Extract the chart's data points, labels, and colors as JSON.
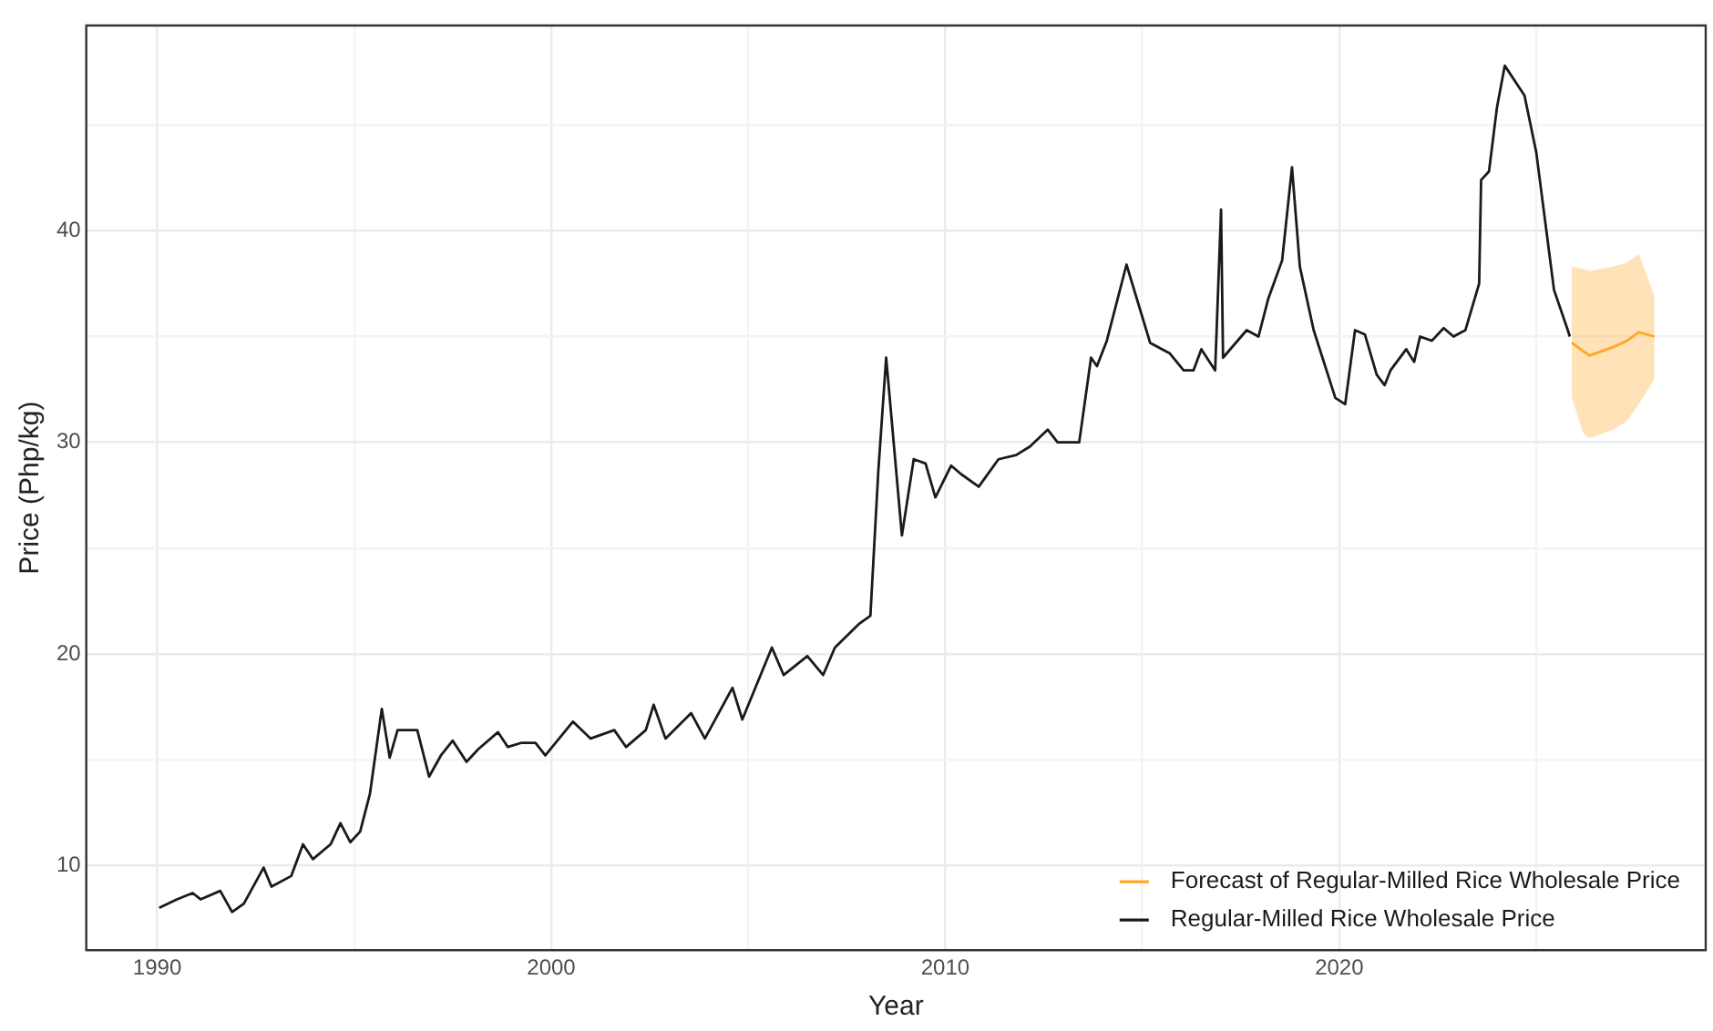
{
  "chart_data": {
    "type": "line",
    "xlabel": "Year",
    "ylabel": "Price (Php/kg)",
    "xlim": [
      1988.2,
      2029.3
    ],
    "xticks": [
      1990,
      {
        "value": 1995,
        "label": null
      },
      2000,
      {
        "value": 2005,
        "label": null
      },
      2010,
      {
        "value": 2015,
        "label": null
      },
      2020,
      {
        "value": 2025,
        "label": null
      }
    ],
    "ylim": [
      6,
      49.7
    ],
    "yticks": [
      10,
      {
        "value": 15,
        "label": null
      },
      20,
      {
        "value": 25,
        "label": null
      },
      30,
      {
        "value": 35,
        "label": null
      },
      40,
      {
        "value": 45,
        "label": null
      }
    ],
    "grid": true,
    "legend": "bottom right",
    "marker": "none",
    "line_style": "solid",
    "series": [
      {
        "name": "Forecast of Regular-Milled Rice Wholesale Price",
        "color": "#ffa726",
        "x": [
          2025.9,
          2026.2,
          2026.35,
          2026.95,
          2027.3,
          2027.6,
          2028.0
        ],
        "values": [
          34.7,
          34.3,
          34.1,
          34.5,
          34.8,
          35.2,
          35.0
        ],
        "lower": [
          32.1,
          30.4,
          30.2,
          30.6,
          31.0,
          31.8,
          33.0
        ],
        "upper": [
          38.3,
          38.2,
          38.1,
          38.3,
          38.5,
          38.9,
          36.9
        ]
      },
      {
        "name": "Regular-Milled Rice Wholesale Price",
        "color": "#1a1a1a",
        "x": [
          1990.05,
          1990.5,
          1990.9,
          1991.1,
          1991.6,
          1991.9,
          1992.2,
          1992.7,
          1992.9,
          1993.4,
          1993.7,
          1993.95,
          1994.4,
          1994.65,
          1994.9,
          1995.15,
          1995.4,
          1995.7,
          1995.9,
          1996.1,
          1996.6,
          1996.9,
          1997.2,
          1997.5,
          1997.85,
          1998.15,
          1998.65,
          1998.9,
          1999.25,
          1999.6,
          1999.85,
          2000.55,
          2001.0,
          2001.6,
          2001.9,
          2002.4,
          2002.6,
          2002.9,
          2003.55,
          2003.9,
          2004.6,
          2004.85,
          2005.6,
          2005.9,
          2006.5,
          2006.9,
          2007.2,
          2007.8,
          2008.1,
          2008.3,
          2008.5,
          2008.9,
          2009.2,
          2009.5,
          2009.75,
          2010.15,
          2010.4,
          2010.85,
          2011.35,
          2011.8,
          2012.15,
          2012.6,
          2012.85,
          2013.4,
          2013.7,
          2013.85,
          2014.1,
          2014.6,
          2015.2,
          2015.7,
          2016.05,
          2016.3,
          2016.5,
          2016.85,
          2017.0,
          2017.05,
          2017.65,
          2017.95,
          2018.2,
          2018.55,
          2018.8,
          2019.0,
          2019.35,
          2019.9,
          2020.15,
          2020.4,
          2020.65,
          2020.95,
          2021.15,
          2021.3,
          2021.7,
          2021.9,
          2022.05,
          2022.35,
          2022.65,
          2022.9,
          2023.2,
          2023.55,
          2023.6,
          2023.8,
          2024.0,
          2024.2,
          2024.7,
          2025.0,
          2025.45,
          2025.8,
          2025.85
        ],
        "values": [
          8.0,
          8.4,
          8.7,
          8.4,
          8.8,
          7.8,
          8.2,
          9.9,
          9.0,
          9.5,
          11.0,
          10.3,
          11.0,
          12.0,
          11.1,
          11.6,
          13.4,
          17.4,
          15.1,
          16.4,
          16.4,
          14.2,
          15.2,
          15.9,
          14.9,
          15.5,
          16.3,
          15.6,
          15.8,
          15.8,
          15.2,
          16.8,
          16.0,
          16.4,
          15.6,
          16.4,
          17.6,
          16.0,
          17.2,
          16.0,
          18.4,
          16.9,
          20.3,
          19.0,
          19.9,
          19.0,
          20.3,
          21.4,
          21.8,
          28.6,
          34.0,
          25.6,
          29.2,
          29.0,
          27.4,
          28.9,
          28.5,
          27.9,
          29.2,
          29.4,
          29.8,
          30.6,
          30.0,
          30.0,
          34.0,
          33.6,
          34.8,
          38.4,
          34.7,
          34.2,
          33.4,
          33.4,
          34.4,
          33.4,
          41.0,
          34.0,
          35.3,
          35.0,
          36.8,
          38.6,
          43.0,
          38.3,
          35.3,
          32.1,
          31.8,
          35.3,
          35.1,
          33.2,
          32.7,
          33.4,
          34.4,
          33.8,
          35.0,
          34.8,
          35.4,
          35.0,
          35.3,
          37.5,
          42.4,
          42.8,
          45.8,
          47.8,
          46.4,
          43.7,
          37.2,
          35.3,
          35.0
        ]
      }
    ]
  }
}
